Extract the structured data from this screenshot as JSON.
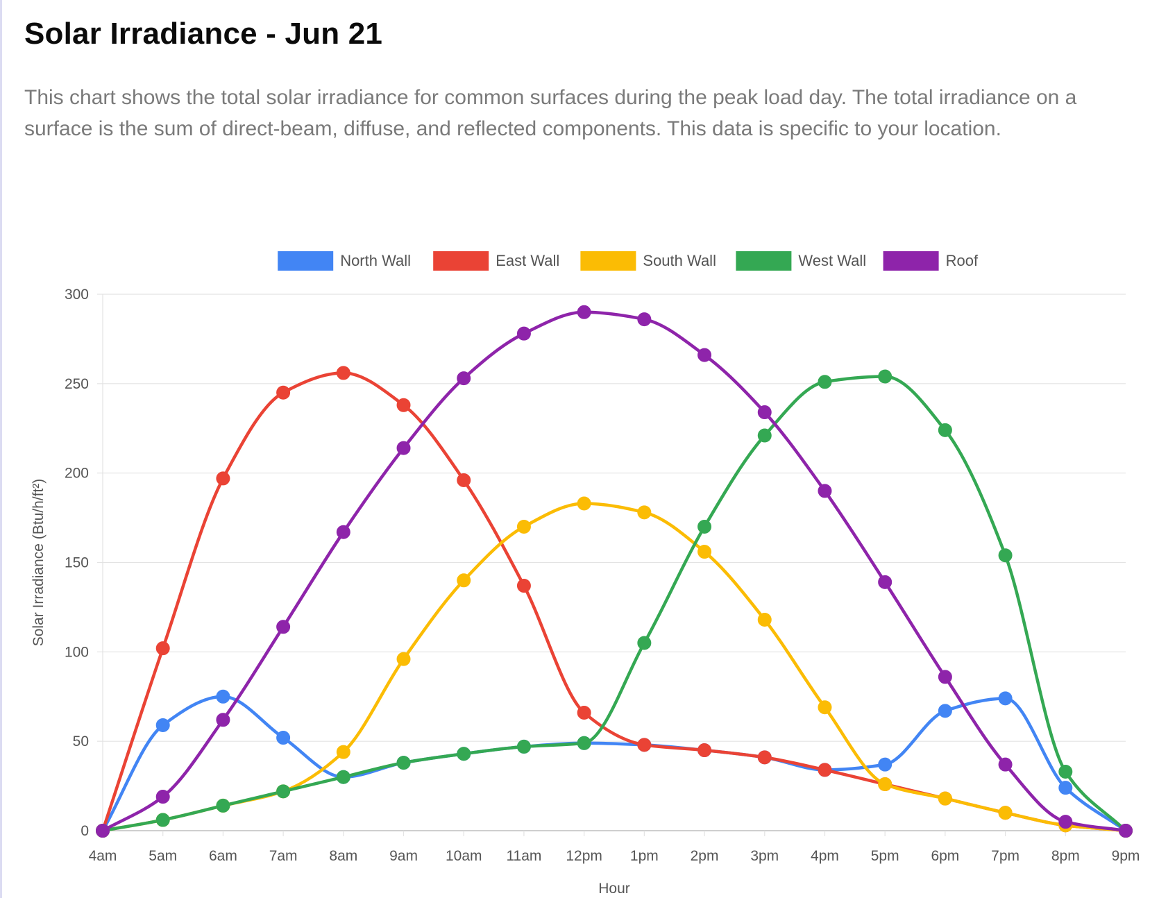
{
  "header": {
    "title": "Solar Irradiance - Jun 21",
    "description": "This chart shows the total solar irradiance for common surfaces during the peak load day. The total irradiance on a surface is the sum of direct-beam, diffuse, and reflected components. This data is specific to your location."
  },
  "chart_data": {
    "type": "line",
    "title": "",
    "xlabel": "Hour",
    "ylabel": "Solar Irradiance (Btu/h/ft²)",
    "ylim": [
      0,
      300
    ],
    "yticks": [
      0,
      50,
      100,
      150,
      200,
      250,
      300
    ],
    "grid": true,
    "legend_position": "top-center",
    "smooth": true,
    "categories": [
      "4am",
      "5am",
      "6am",
      "7am",
      "8am",
      "9am",
      "10am",
      "11am",
      "12pm",
      "1pm",
      "2pm",
      "3pm",
      "4pm",
      "5pm",
      "6pm",
      "7pm",
      "8pm",
      "9pm"
    ],
    "series": [
      {
        "name": "North Wall",
        "color": "#4285f4",
        "values": [
          0,
          59,
          75,
          52,
          30,
          38,
          43,
          47,
          49,
          48,
          45,
          41,
          34,
          37,
          67,
          74,
          24,
          0
        ]
      },
      {
        "name": "East Wall",
        "color": "#ea4335",
        "values": [
          0,
          102,
          197,
          245,
          256,
          238,
          196,
          137,
          66,
          48,
          45,
          41,
          34,
          26,
          18,
          10,
          3,
          0
        ]
      },
      {
        "name": "South Wall",
        "color": "#fbbc04",
        "values": [
          0,
          6,
          14,
          22,
          44,
          96,
          140,
          170,
          183,
          178,
          156,
          118,
          69,
          26,
          18,
          10,
          3,
          0
        ]
      },
      {
        "name": "West Wall",
        "color": "#34a853",
        "values": [
          0,
          6,
          14,
          22,
          30,
          38,
          43,
          47,
          49,
          105,
          170,
          221,
          251,
          254,
          224,
          154,
          33,
          0
        ]
      },
      {
        "name": "Roof",
        "color": "#8e24aa",
        "values": [
          0,
          19,
          62,
          114,
          167,
          214,
          253,
          278,
          290,
          286,
          266,
          234,
          190,
          139,
          86,
          37,
          5,
          0
        ]
      }
    ]
  }
}
